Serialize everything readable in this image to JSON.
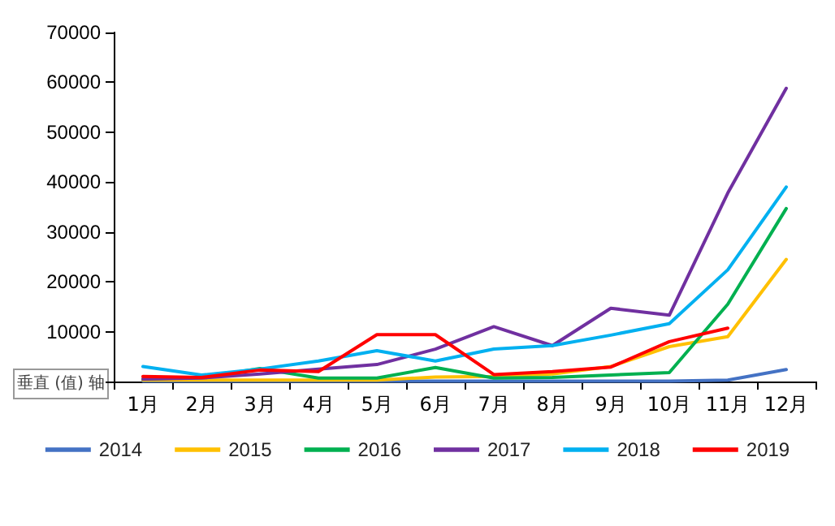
{
  "chart_data": {
    "type": "line",
    "categories": [
      "1月",
      "2月",
      "3月",
      "4月",
      "5月",
      "6月",
      "7月",
      "8月",
      "9月",
      "10月",
      "11月",
      "12月"
    ],
    "series": [
      {
        "name": "2014",
        "color": "#4472c4",
        "values": [
          100,
          100,
          100,
          100,
          100,
          100,
          100,
          100,
          100,
          100,
          300,
          2400
        ]
      },
      {
        "name": "2015",
        "color": "#ffc000",
        "values": [
          300,
          300,
          300,
          300,
          300,
          900,
          1000,
          1500,
          3000,
          7000,
          9000,
          24500
        ]
      },
      {
        "name": "2016",
        "color": "#00b050",
        "values": [
          500,
          800,
          2600,
          700,
          700,
          2800,
          700,
          800,
          1300,
          1800,
          15500,
          34700
        ]
      },
      {
        "name": "2017",
        "color": "#7030a0",
        "values": [
          500,
          700,
          1500,
          2500,
          3400,
          6500,
          11000,
          7200,
          14700,
          13300,
          37800,
          58800
        ]
      },
      {
        "name": "2018",
        "color": "#00b0f0",
        "values": [
          3000,
          1300,
          2500,
          4100,
          6200,
          4100,
          6500,
          7200,
          9300,
          11600,
          22400,
          39000
        ]
      },
      {
        "name": "2019",
        "color": "#ff0000",
        "values": [
          1000,
          800,
          2300,
          2000,
          9400,
          9400,
          1400,
          2000,
          2900,
          8000,
          10700,
          null
        ]
      }
    ],
    "ylim": [
      0,
      70000
    ],
    "yticks": [
      {
        "value": 0,
        "label": null
      },
      10000,
      20000,
      30000,
      40000,
      50000,
      60000,
      70000
    ],
    "grid": false,
    "legend": "bottom",
    "marker": "none",
    "line_style": "solid",
    "annotations": [
      "垂直 (值) 轴"
    ]
  }
}
